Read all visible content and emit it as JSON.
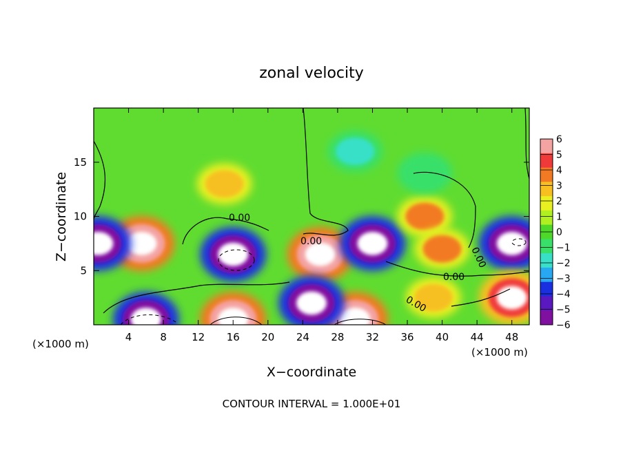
{
  "chart_data": {
    "type": "heatmap",
    "title": "zonal velocity",
    "xlabel": "X−coordinate",
    "ylabel": "Z−coordinate",
    "x_unit_label_left": "(×1000 m)",
    "x_unit_label_right": "(×1000 m)",
    "footer": "CONTOUR INTERVAL = 1.000E+01",
    "xlim": [
      0,
      50
    ],
    "ylim": [
      0,
      20
    ],
    "x_ticks": [
      "4",
      "8",
      "12",
      "16",
      "20",
      "24",
      "28",
      "32",
      "36",
      "40",
      "44",
      "48"
    ],
    "y_ticks": [
      "5",
      "10",
      "15"
    ],
    "contour_labels": [
      "0.00",
      "0.00",
      "0.00",
      "0.00",
      "0.00"
    ],
    "colorbar": {
      "range": [
        -6,
        6
      ],
      "ticks": [
        "6",
        "5",
        "4",
        "3",
        "2",
        "1",
        "0",
        "−1",
        "−2",
        "−3",
        "−4",
        "−5",
        "−6"
      ],
      "colors": [
        "#f4a3a3",
        "#f03a3a",
        "#f27a24",
        "#f7c020",
        "#e8f020",
        "#b0f020",
        "#4ed82a",
        "#38e06a",
        "#38e0c8",
        "#28a8f0",
        "#1a30e0",
        "#5a18c0",
        "#8010a0"
      ]
    },
    "features": [
      {
        "x": 5.5,
        "z": 7.5,
        "value": 6
      },
      {
        "x": 16,
        "z": 6.5,
        "value": -6
      },
      {
        "x": 26,
        "z": 6.5,
        "value": 6
      },
      {
        "x": 32,
        "z": 7.5,
        "value": -6
      },
      {
        "x": 38,
        "z": 10,
        "value": 4
      },
      {
        "x": 40,
        "z": 7,
        "value": 4
      },
      {
        "x": 48,
        "z": 7.5,
        "value": -6
      },
      {
        "x": 0.5,
        "z": 7.5,
        "value": -6
      },
      {
        "x": 15,
        "z": 13,
        "value": 3
      },
      {
        "x": 16,
        "z": 0.5,
        "value": 6
      },
      {
        "x": 6,
        "z": 0.5,
        "value": -6
      },
      {
        "x": 30,
        "z": 0.5,
        "value": 6
      },
      {
        "x": 25,
        "z": 2,
        "value": -6
      },
      {
        "x": 39,
        "z": 2.5,
        "value": 3
      },
      {
        "x": 48,
        "z": 2.5,
        "value": 5
      },
      {
        "x": 38,
        "z": 14,
        "value": -1
      },
      {
        "x": 30,
        "z": 16,
        "value": -2
      }
    ]
  }
}
